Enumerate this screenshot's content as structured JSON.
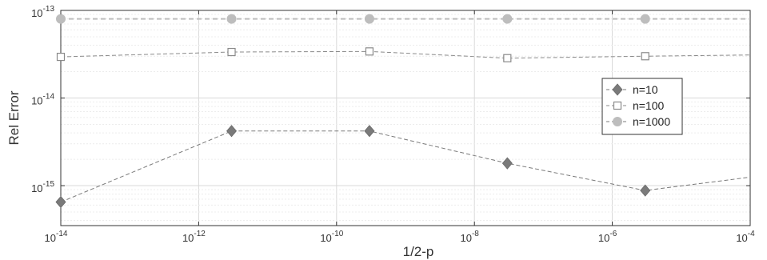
{
  "chart_data": {
    "type": "line",
    "title": "",
    "xlabel": "1/2-p",
    "ylabel": "Rel Error",
    "xscale": "log",
    "yscale": "log",
    "xlim": [
      1e-14,
      0.0001
    ],
    "ylim": [
      3.5e-16,
      1e-13
    ],
    "x_ticks": [
      1e-14,
      1e-12,
      1e-10,
      1e-08,
      1e-06,
      0.0001
    ],
    "x_tick_labels": [
      {
        "base": "10",
        "exp": "-14"
      },
      {
        "base": "10",
        "exp": "-12"
      },
      {
        "base": "10",
        "exp": "-10"
      },
      {
        "base": "10",
        "exp": "-8"
      },
      {
        "base": "10",
        "exp": "-6"
      },
      {
        "base": "10",
        "exp": "-4"
      }
    ],
    "y_ticks": [
      1e-15,
      1e-14,
      1e-13
    ],
    "y_tick_labels": [
      {
        "base": "10",
        "exp": "-15"
      },
      {
        "base": "10",
        "exp": "-14"
      },
      {
        "base": "10",
        "exp": "-13"
      }
    ],
    "grid": true,
    "legend_position": "right",
    "series": [
      {
        "name": "n=10",
        "marker": "diamond",
        "color": "#7a7a7a",
        "x": [
          1e-14,
          3e-12,
          3e-10,
          3e-08,
          3e-06,
          0.0001
        ],
        "y": [
          6.5e-16,
          4.2e-15,
          4.2e-15,
          1.8e-15,
          8.8e-16,
          1.25e-15
        ],
        "marker_points": [
          0,
          1,
          2,
          3,
          4
        ]
      },
      {
        "name": "n=100",
        "marker": "square-open",
        "color": "#8a8a8a",
        "x": [
          1e-14,
          3e-12,
          3e-10,
          3e-08,
          3e-06,
          0.0001
        ],
        "y": [
          2.95e-14,
          3.35e-14,
          3.4e-14,
          2.85e-14,
          3e-14,
          3.1e-14
        ],
        "marker_points": [
          0,
          1,
          2,
          3,
          4
        ]
      },
      {
        "name": "n=1000",
        "marker": "circle",
        "color": "#bdbdbd",
        "x": [
          1e-14,
          3e-12,
          3e-10,
          3e-08,
          3e-06,
          0.0001
        ],
        "y": [
          8e-14,
          8e-14,
          8e-14,
          8e-14,
          8e-14,
          8e-14
        ],
        "marker_points": [
          0,
          1,
          2,
          3,
          4
        ]
      }
    ],
    "colors": {
      "axis": "#333333",
      "grid_major": "#d9d9d9",
      "grid_minor": "#ececec",
      "legend_border": "#333333"
    }
  }
}
